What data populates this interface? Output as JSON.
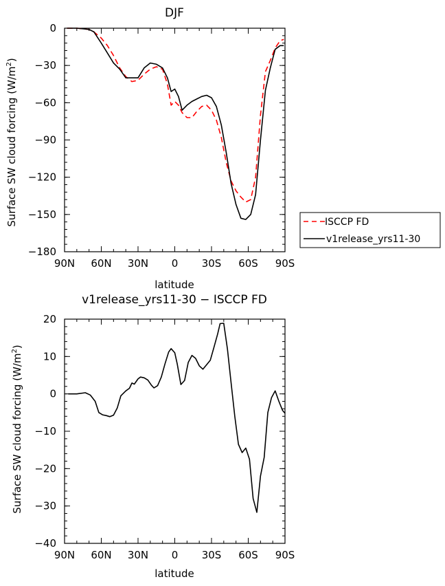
{
  "chart_data": [
    {
      "type": "line",
      "title": "DJF",
      "xlabel": "latitude",
      "ylabel": "Surface SW cloud forcing (W/m²)",
      "ylabel_main": "Surface SW cloud forcing (W/m",
      "ylabel_sup": "2",
      "ylabel_close": ")",
      "xlim": [
        90,
        -90
      ],
      "ylim": [
        -180,
        0
      ],
      "xticks": [
        90,
        60,
        30,
        0,
        -30,
        -60,
        -90
      ],
      "xtick_labels": [
        "90N",
        "60N",
        "30N",
        "0",
        "30S",
        "60S",
        "90S"
      ],
      "yticks": [
        0,
        -30,
        -60,
        -90,
        -120,
        -150,
        -180
      ],
      "ytick_labels": [
        "0",
        "−30",
        "−60",
        "−90",
        "−120",
        "−150",
        "−180"
      ],
      "legend": {
        "placement": "outside-right"
      },
      "series": [
        {
          "name": "ISCCP FD",
          "color": "#ff0000",
          "dash": "dashed",
          "points": [
            [
              88,
              0
            ],
            [
              80,
              0
            ],
            [
              70,
              -1
            ],
            [
              66,
              -3
            ],
            [
              60,
              -8
            ],
            [
              55,
              -14
            ],
            [
              50,
              -22
            ],
            [
              45,
              -32
            ],
            [
              40,
              -39
            ],
            [
              35,
              -43
            ],
            [
              30,
              -42
            ],
            [
              25,
              -37
            ],
            [
              20,
              -33
            ],
            [
              15,
              -31
            ],
            [
              10,
              -33
            ],
            [
              6,
              -45
            ],
            [
              3,
              -62
            ],
            [
              0,
              -59
            ],
            [
              -3,
              -62
            ],
            [
              -6,
              -68
            ],
            [
              -10,
              -72
            ],
            [
              -14,
              -72
            ],
            [
              -18,
              -67
            ],
            [
              -22,
              -63
            ],
            [
              -26,
              -62
            ],
            [
              -30,
              -66
            ],
            [
              -34,
              -74
            ],
            [
              -38,
              -88
            ],
            [
              -42,
              -108
            ],
            [
              -46,
              -123
            ],
            [
              -50,
              -131
            ],
            [
              -54,
              -136
            ],
            [
              -58,
              -140
            ],
            [
              -62,
              -138
            ],
            [
              -66,
              -120
            ],
            [
              -70,
              -70
            ],
            [
              -74,
              -35
            ],
            [
              -78,
              -26
            ],
            [
              -82,
              -16
            ],
            [
              -86,
              -10
            ],
            [
              -89,
              -9
            ]
          ]
        },
        {
          "name": "v1release_yrs11-30",
          "color": "#000000",
          "dash": "solid",
          "points": [
            [
              88,
              0
            ],
            [
              80,
              0
            ],
            [
              70,
              -1
            ],
            [
              66,
              -3
            ],
            [
              60,
              -12
            ],
            [
              55,
              -20
            ],
            [
              50,
              -28
            ],
            [
              45,
              -33
            ],
            [
              40,
              -40
            ],
            [
              35,
              -40
            ],
            [
              30,
              -40
            ],
            [
              25,
              -32
            ],
            [
              20,
              -28
            ],
            [
              15,
              -29
            ],
            [
              10,
              -32
            ],
            [
              6,
              -40
            ],
            [
              3,
              -51
            ],
            [
              0,
              -49
            ],
            [
              -3,
              -55
            ],
            [
              -6,
              -66
            ],
            [
              -10,
              -62
            ],
            [
              -14,
              -59
            ],
            [
              -18,
              -57
            ],
            [
              -22,
              -55
            ],
            [
              -26,
              -54
            ],
            [
              -30,
              -56
            ],
            [
              -34,
              -63
            ],
            [
              -38,
              -78
            ],
            [
              -42,
              -100
            ],
            [
              -46,
              -125
            ],
            [
              -50,
              -142
            ],
            [
              -54,
              -153
            ],
            [
              -58,
              -154
            ],
            [
              -62,
              -150
            ],
            [
              -66,
              -134
            ],
            [
              -70,
              -90
            ],
            [
              -74,
              -50
            ],
            [
              -78,
              -32
            ],
            [
              -82,
              -17
            ],
            [
              -86,
              -14
            ],
            [
              -89,
              -14
            ]
          ]
        }
      ]
    },
    {
      "type": "line",
      "title": "v1release_yrs11-30 − ISCCP FD",
      "xlabel": "latitude",
      "ylabel": "Surface SW cloud forcing (W/m²)",
      "ylabel_main": "Surface SW cloud forcing (W/m",
      "ylabel_sup": "2",
      "ylabel_close": ")",
      "xlim": [
        90,
        -90
      ],
      "ylim": [
        -40,
        20
      ],
      "xticks": [
        90,
        60,
        30,
        0,
        -30,
        -60,
        -90
      ],
      "xtick_labels": [
        "90N",
        "60N",
        "30N",
        "0",
        "30S",
        "60S",
        "90S"
      ],
      "yticks": [
        20,
        10,
        0,
        -10,
        -20,
        -30,
        -40
      ],
      "ytick_labels": [
        "20",
        "10",
        "0",
        "−10",
        "−20",
        "−30",
        "−40"
      ],
      "series": [
        {
          "name": "v1release_yrs11-30 − ISCCP FD",
          "color": "#000000",
          "dash": "solid",
          "points": [
            [
              87,
              0
            ],
            [
              80,
              0
            ],
            [
              73,
              0.3
            ],
            [
              69,
              -0.3
            ],
            [
              65,
              -2
            ],
            [
              62,
              -5
            ],
            [
              59,
              -5.6
            ],
            [
              56,
              -5.8
            ],
            [
              53,
              -6.1
            ],
            [
              50,
              -5.7
            ],
            [
              47,
              -3.8
            ],
            [
              44,
              -0.5
            ],
            [
              40,
              0.8
            ],
            [
              37,
              1.5
            ],
            [
              35,
              2.9
            ],
            [
              33,
              2.6
            ],
            [
              30,
              4
            ],
            [
              28,
              4.5
            ],
            [
              25,
              4.3
            ],
            [
              22,
              3.7
            ],
            [
              19,
              2.3
            ],
            [
              17,
              1.6
            ],
            [
              14,
              2.2
            ],
            [
              11,
              4.5
            ],
            [
              8,
              8
            ],
            [
              5,
              11.2
            ],
            [
              3,
              12.1
            ],
            [
              0,
              11
            ],
            [
              -2,
              8
            ],
            [
              -5,
              2.5
            ],
            [
              -8,
              3.6
            ],
            [
              -11,
              8.4
            ],
            [
              -14,
              10.3
            ],
            [
              -17,
              9.5
            ],
            [
              -20,
              7.5
            ],
            [
              -23,
              6.6
            ],
            [
              -26,
              7.8
            ],
            [
              -29,
              9
            ],
            [
              -32,
              12.5
            ],
            [
              -35,
              16
            ],
            [
              -37,
              18.8
            ],
            [
              -40,
              18.9
            ],
            [
              -43,
              12
            ],
            [
              -46,
              3
            ],
            [
              -49,
              -6
            ],
            [
              -52,
              -13.5
            ],
            [
              -55,
              -15.7
            ],
            [
              -58,
              -14.5
            ],
            [
              -61,
              -17.5
            ],
            [
              -64,
              -28
            ],
            [
              -67,
              -31.7
            ],
            [
              -70,
              -22
            ],
            [
              -73,
              -17
            ],
            [
              -76,
              -5
            ],
            [
              -79,
              -1
            ],
            [
              -82,
              0.8
            ],
            [
              -85,
              -2
            ],
            [
              -88,
              -4.4
            ],
            [
              -90,
              -5.2
            ]
          ]
        }
      ]
    }
  ]
}
